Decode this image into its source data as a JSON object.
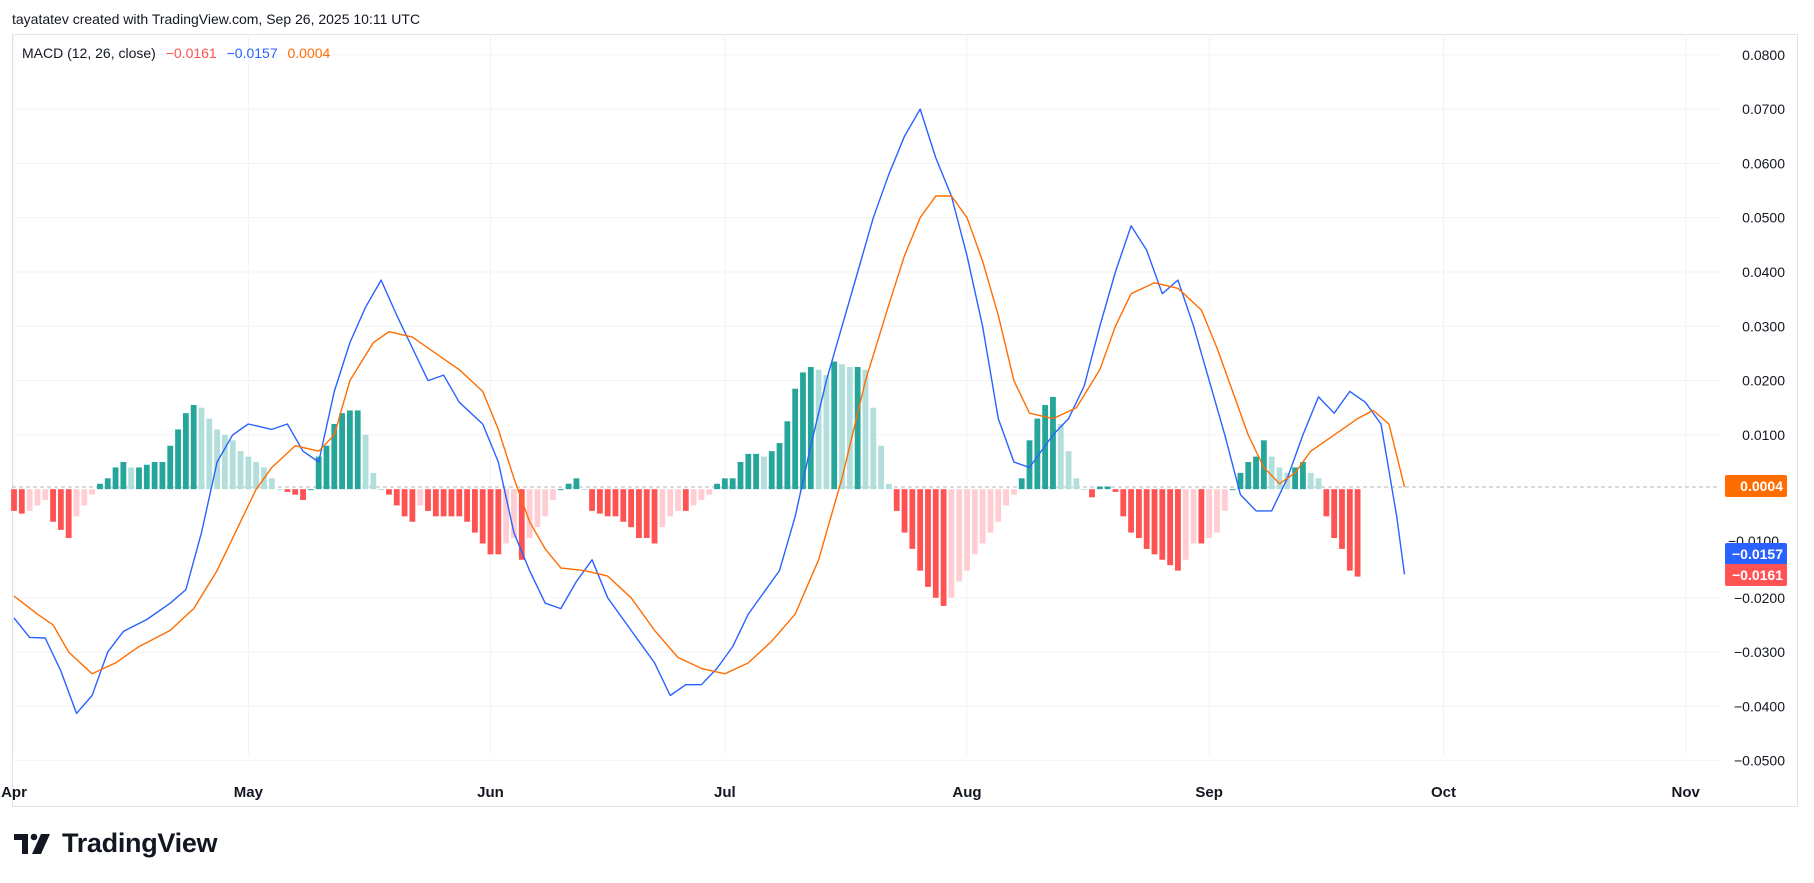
{
  "credit": "tayatatev created with TradingView.com, Sep 26, 2025 10:11 UTC",
  "legend": {
    "title": "MACD (12, 26, close)",
    "hist_value": "−0.0161",
    "macd_value": "−0.0157",
    "signal_value": "0.0004"
  },
  "brand": "TradingView",
  "badges": {
    "signal": "0.0004",
    "macd": "−0.0157",
    "hist": "−0.0161",
    "partial_tick": "−0.0100"
  },
  "colors": {
    "macd": "#2962ff",
    "signal": "#ff6d00",
    "hist_up_strong": "#26a69a",
    "hist_up_weak": "#b2dfdb",
    "hist_down_strong": "#ff5252",
    "hist_down_weak": "#ffcdd2",
    "grid": "#f0f3fa",
    "zero_line": "#b2b5be"
  },
  "chart_data": {
    "type": "line",
    "title": "MACD (12, 26, close)",
    "ylim": [
      -0.053,
      0.081
    ],
    "y_ticks": [
      "0.0800",
      "0.0700",
      "0.0600",
      "0.0500",
      "0.0400",
      "0.0300",
      "0.0200",
      "0.0100",
      "−0.0200",
      "−0.0300",
      "−0.0400",
      "−0.0500"
    ],
    "y_tick_values": [
      0.08,
      0.07,
      0.06,
      0.05,
      0.04,
      0.03,
      0.02,
      0.01,
      -0.02,
      -0.03,
      -0.04,
      -0.05
    ],
    "x_ticks": [
      "Apr",
      "May",
      "Jun",
      "Jul",
      "Aug",
      "Sep",
      "Oct",
      "Nov"
    ],
    "x_tick_dates": [
      "2025-04-01",
      "2025-05-01",
      "2025-06-01",
      "2025-07-01",
      "2025-08-01",
      "2025-09-01",
      "2025-10-01",
      "2025-11-01"
    ],
    "x_range": [
      "2025-04-01",
      "2025-11-13"
    ],
    "grid": true,
    "series": [
      {
        "name": "MACD",
        "color": "#2962ff",
        "points": [
          [
            "2025-04-01",
            -0.0237
          ],
          [
            "2025-04-03",
            -0.0273
          ],
          [
            "2025-04-05",
            -0.0274
          ],
          [
            "2025-04-07",
            -0.0335
          ],
          [
            "2025-04-09",
            -0.0413
          ],
          [
            "2025-04-11",
            -0.038
          ],
          [
            "2025-04-13",
            -0.03
          ],
          [
            "2025-04-15",
            -0.0262
          ],
          [
            "2025-04-18",
            -0.024
          ],
          [
            "2025-04-21",
            -0.021
          ],
          [
            "2025-04-23",
            -0.0185
          ],
          [
            "2025-04-25",
            -0.008
          ],
          [
            "2025-04-27",
            0.005
          ],
          [
            "2025-04-29",
            0.01
          ],
          [
            "2025-05-01",
            0.012
          ],
          [
            "2025-05-04",
            0.011
          ],
          [
            "2025-05-06",
            0.012
          ],
          [
            "2025-05-08",
            0.007
          ],
          [
            "2025-05-10",
            0.005
          ],
          [
            "2025-05-12",
            0.018
          ],
          [
            "2025-05-14",
            0.027
          ],
          [
            "2025-05-16",
            0.0335
          ],
          [
            "2025-05-18",
            0.0385
          ],
          [
            "2025-05-20",
            0.032
          ],
          [
            "2025-05-22",
            0.026
          ],
          [
            "2025-05-24",
            0.02
          ],
          [
            "2025-05-26",
            0.021
          ],
          [
            "2025-05-28",
            0.016
          ],
          [
            "2025-05-31",
            0.012
          ],
          [
            "2025-06-02",
            0.005
          ],
          [
            "2025-06-04",
            -0.008
          ],
          [
            "2025-06-06",
            -0.015
          ],
          [
            "2025-06-08",
            -0.021
          ],
          [
            "2025-06-10",
            -0.022
          ],
          [
            "2025-06-12",
            -0.017
          ],
          [
            "2025-06-14",
            -0.013
          ],
          [
            "2025-06-16",
            -0.02
          ],
          [
            "2025-06-18",
            -0.024
          ],
          [
            "2025-06-20",
            -0.028
          ],
          [
            "2025-06-22",
            -0.032
          ],
          [
            "2025-06-24",
            -0.038
          ],
          [
            "2025-06-26",
            -0.036
          ],
          [
            "2025-06-28",
            -0.036
          ],
          [
            "2025-06-30",
            -0.033
          ],
          [
            "2025-07-02",
            -0.029
          ],
          [
            "2025-07-04",
            -0.023
          ],
          [
            "2025-07-06",
            -0.019
          ],
          [
            "2025-07-08",
            -0.015
          ],
          [
            "2025-07-10",
            -0.005
          ],
          [
            "2025-07-12",
            0.008
          ],
          [
            "2025-07-14",
            0.02
          ],
          [
            "2025-07-16",
            0.03
          ],
          [
            "2025-07-18",
            0.04
          ],
          [
            "2025-07-20",
            0.05
          ],
          [
            "2025-07-22",
            0.058
          ],
          [
            "2025-07-24",
            0.065
          ],
          [
            "2025-07-26",
            0.07
          ],
          [
            "2025-07-28",
            0.061
          ],
          [
            "2025-07-30",
            0.054
          ],
          [
            "2025-08-01",
            0.043
          ],
          [
            "2025-08-03",
            0.03
          ],
          [
            "2025-08-05",
            0.013
          ],
          [
            "2025-08-07",
            0.005
          ],
          [
            "2025-08-09",
            0.004
          ],
          [
            "2025-08-12",
            0.01
          ],
          [
            "2025-08-14",
            0.013
          ],
          [
            "2025-08-16",
            0.019
          ],
          [
            "2025-08-18",
            0.03
          ],
          [
            "2025-08-20",
            0.04
          ],
          [
            "2025-08-22",
            0.0485
          ],
          [
            "2025-08-24",
            0.044
          ],
          [
            "2025-08-26",
            0.036
          ],
          [
            "2025-08-28",
            0.0385
          ],
          [
            "2025-08-30",
            0.03
          ],
          [
            "2025-09-01",
            0.02
          ],
          [
            "2025-09-03",
            0.01
          ],
          [
            "2025-09-05",
            -0.001
          ],
          [
            "2025-09-07",
            -0.004
          ],
          [
            "2025-09-09",
            -0.004
          ],
          [
            "2025-09-11",
            0.002
          ],
          [
            "2025-09-13",
            0.01
          ],
          [
            "2025-09-15",
            0.017
          ],
          [
            "2025-09-17",
            0.014
          ],
          [
            "2025-09-19",
            0.018
          ],
          [
            "2025-09-21",
            0.016
          ],
          [
            "2025-09-23",
            0.012
          ],
          [
            "2025-09-25",
            -0.005
          ],
          [
            "2025-09-26",
            -0.0157
          ]
        ]
      },
      {
        "name": "Signal",
        "color": "#ff6d00",
        "points": [
          [
            "2025-04-01",
            -0.0197
          ],
          [
            "2025-04-04",
            -0.023
          ],
          [
            "2025-04-06",
            -0.025
          ],
          [
            "2025-04-08",
            -0.03
          ],
          [
            "2025-04-11",
            -0.034
          ],
          [
            "2025-04-14",
            -0.032
          ],
          [
            "2025-04-17",
            -0.029
          ],
          [
            "2025-04-21",
            -0.026
          ],
          [
            "2025-04-24",
            -0.022
          ],
          [
            "2025-04-27",
            -0.015
          ],
          [
            "2025-04-30",
            -0.006
          ],
          [
            "2025-05-02",
            0.0
          ],
          [
            "2025-05-04",
            0.004
          ],
          [
            "2025-05-07",
            0.008
          ],
          [
            "2025-05-10",
            0.007
          ],
          [
            "2025-05-12",
            0.01
          ],
          [
            "2025-05-14",
            0.02
          ],
          [
            "2025-05-17",
            0.027
          ],
          [
            "2025-05-19",
            0.029
          ],
          [
            "2025-05-22",
            0.028
          ],
          [
            "2025-05-25",
            0.025
          ],
          [
            "2025-05-28",
            0.022
          ],
          [
            "2025-05-31",
            0.018
          ],
          [
            "2025-06-02",
            0.011
          ],
          [
            "2025-06-04",
            0.002
          ],
          [
            "2025-06-06",
            -0.006
          ],
          [
            "2025-06-08",
            -0.011
          ],
          [
            "2025-06-10",
            -0.0145
          ],
          [
            "2025-06-13",
            -0.015
          ],
          [
            "2025-06-16",
            -0.016
          ],
          [
            "2025-06-19",
            -0.02
          ],
          [
            "2025-06-22",
            -0.026
          ],
          [
            "2025-06-25",
            -0.031
          ],
          [
            "2025-06-28",
            -0.033
          ],
          [
            "2025-07-01",
            -0.034
          ],
          [
            "2025-07-04",
            -0.032
          ],
          [
            "2025-07-07",
            -0.028
          ],
          [
            "2025-07-10",
            -0.023
          ],
          [
            "2025-07-13",
            -0.013
          ],
          [
            "2025-07-16",
            0.002
          ],
          [
            "2025-07-19",
            0.02
          ],
          [
            "2025-07-22",
            0.034
          ],
          [
            "2025-07-24",
            0.043
          ],
          [
            "2025-07-26",
            0.05
          ],
          [
            "2025-07-28",
            0.054
          ],
          [
            "2025-07-30",
            0.054
          ],
          [
            "2025-08-01",
            0.05
          ],
          [
            "2025-08-03",
            0.042
          ],
          [
            "2025-08-05",
            0.032
          ],
          [
            "2025-08-07",
            0.02
          ],
          [
            "2025-08-09",
            0.014
          ],
          [
            "2025-08-12",
            0.013
          ],
          [
            "2025-08-15",
            0.015
          ],
          [
            "2025-08-18",
            0.022
          ],
          [
            "2025-08-20",
            0.03
          ],
          [
            "2025-08-22",
            0.036
          ],
          [
            "2025-08-25",
            0.038
          ],
          [
            "2025-08-28",
            0.037
          ],
          [
            "2025-08-31",
            0.033
          ],
          [
            "2025-09-02",
            0.026
          ],
          [
            "2025-09-04",
            0.018
          ],
          [
            "2025-09-06",
            0.01
          ],
          [
            "2025-09-08",
            0.004
          ],
          [
            "2025-09-10",
            0.001
          ],
          [
            "2025-09-12",
            0.003
          ],
          [
            "2025-09-14",
            0.007
          ],
          [
            "2025-09-17",
            0.01
          ],
          [
            "2025-09-20",
            0.013
          ],
          [
            "2025-09-22",
            0.0145
          ],
          [
            "2025-09-24",
            0.012
          ],
          [
            "2025-09-26",
            0.0004
          ]
        ]
      },
      {
        "name": "Histogram",
        "type": "bar",
        "start": "2025-04-01",
        "values": [
          -0.004,
          -0.0045,
          -0.004,
          -0.003,
          -0.002,
          -0.006,
          -0.0075,
          -0.009,
          -0.005,
          -0.003,
          -0.001,
          0.001,
          0.002,
          0.004,
          0.005,
          0.004,
          0.004,
          0.0045,
          0.005,
          0.005,
          0.008,
          0.011,
          0.014,
          0.0155,
          0.015,
          0.013,
          0.011,
          0.01,
          0.009,
          0.007,
          0.006,
          0.005,
          0.004,
          0.002,
          0.0,
          -0.0005,
          -0.001,
          -0.002,
          0.0,
          0.006,
          0.008,
          0.012,
          0.014,
          0.0145,
          0.0145,
          0.01,
          0.003,
          0.0,
          -0.001,
          -0.003,
          -0.005,
          -0.006,
          -0.003,
          -0.004,
          -0.005,
          -0.005,
          -0.005,
          -0.005,
          -0.006,
          -0.008,
          -0.01,
          -0.012,
          -0.012,
          -0.01,
          -0.009,
          -0.013,
          -0.009,
          -0.007,
          -0.005,
          -0.002,
          0.0,
          0.001,
          0.002,
          0.0,
          -0.004,
          -0.0045,
          -0.005,
          -0.005,
          -0.006,
          -0.007,
          -0.009,
          -0.009,
          -0.01,
          -0.007,
          -0.005,
          -0.004,
          -0.004,
          -0.003,
          -0.002,
          -0.001,
          0.001,
          0.002,
          0.002,
          0.005,
          0.0065,
          0.0065,
          0.006,
          0.007,
          0.0085,
          0.0125,
          0.0185,
          0.0215,
          0.0225,
          0.022,
          0.021,
          0.0235,
          0.023,
          0.0225,
          0.0225,
          0.022,
          0.015,
          0.008,
          0.001,
          -0.004,
          -0.008,
          -0.011,
          -0.015,
          -0.018,
          -0.02,
          -0.0215,
          -0.02,
          -0.017,
          -0.015,
          -0.012,
          -0.01,
          -0.008,
          -0.006,
          -0.003,
          -0.001,
          0.002,
          0.009,
          0.013,
          0.0155,
          0.017,
          0.012,
          0.007,
          0.002,
          0.0,
          -0.0015,
          0.0005,
          0.0005,
          -0.0005,
          -0.005,
          -0.008,
          -0.009,
          -0.011,
          -0.012,
          -0.013,
          -0.014,
          -0.015,
          -0.013,
          -0.01,
          -0.01,
          -0.009,
          -0.008,
          -0.004,
          0.0,
          0.003,
          0.005,
          0.006,
          0.009,
          0.006,
          0.004,
          0.003,
          0.004,
          0.005,
          0.003,
          0.002,
          -0.005,
          -0.009,
          -0.011,
          -0.015,
          -0.0161
        ]
      }
    ]
  }
}
